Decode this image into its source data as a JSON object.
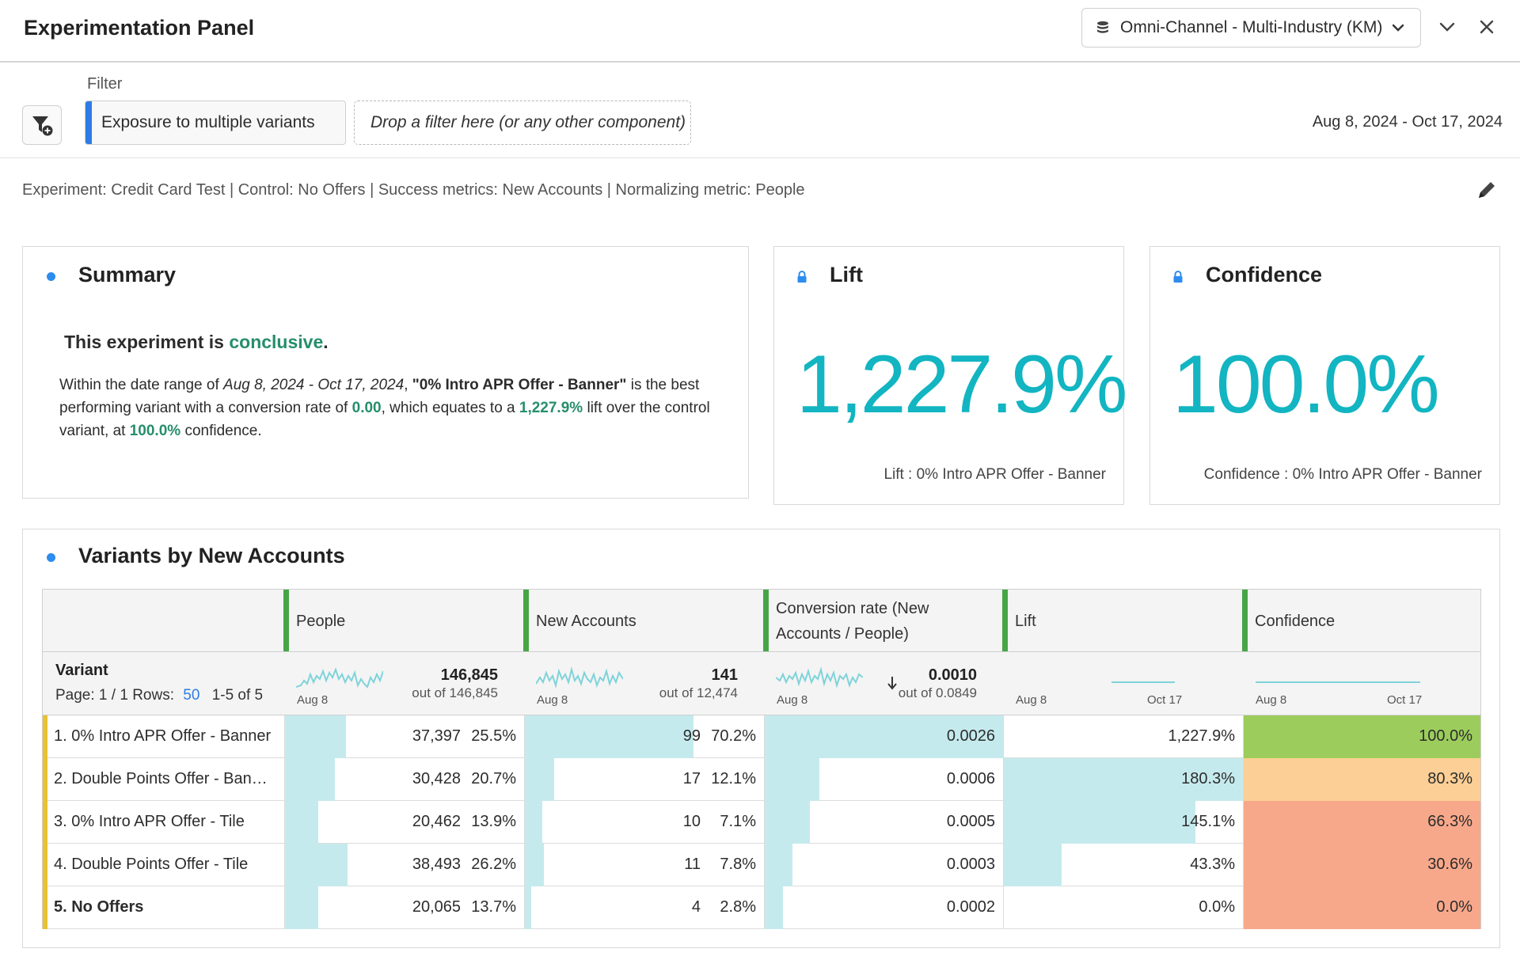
{
  "header": {
    "title": "Experimentation Panel",
    "datasource": "Omni-Channel - Multi-Industry (KM)"
  },
  "filter": {
    "label": "Filter",
    "chip": "Exposure to multiple variants",
    "drop_placeholder": "Drop a filter here (or any other component)",
    "date_range": "Aug 8, 2024 - Oct 17, 2024"
  },
  "experiment_description": "Experiment: Credit Card Test | Control: No Offers | Success metrics: New Accounts | Normalizing metric: People",
  "summary": {
    "title": "Summary",
    "headline_prefix": "This experiment is ",
    "headline_status": "conclusive",
    "headline_suffix": ".",
    "p1": "Within the date range of ",
    "date_range": "Aug 8, 2024 - Oct 17, 2024",
    "p2": ",  ",
    "variant": "\"0% Intro APR Offer - Banner\"",
    "p3": " is the best performing variant with a conversion rate of ",
    "rate": "0.00",
    "p4": ", which equates to a ",
    "lift": "1,227.9%",
    "p5": " lift over the control variant, at ",
    "confidence": "100.0%",
    "p6": " confidence."
  },
  "lift_card": {
    "title": "Lift",
    "value": "1,227.9%",
    "footer": "Lift : 0% Intro APR Offer - Banner"
  },
  "confidence_card": {
    "title": "Confidence",
    "value": "100.0%",
    "footer": "Confidence : 0% Intro APR Offer - Banner"
  },
  "table": {
    "title": "Variants by New Accounts",
    "columns": [
      "People",
      "New Accounts",
      "Conversion rate (New Accounts / People)",
      "Lift",
      "Confidence"
    ],
    "dimension_label": "Variant",
    "pagination": {
      "page": "Page: 1 / 1",
      "rows_label": "Rows:",
      "rows_value": "50",
      "range": "1-5 of 5"
    },
    "totals": {
      "people": {
        "value": "146,845",
        "out_of": "out of 146,845",
        "spark_start": "Aug 8"
      },
      "accounts": {
        "value": "141",
        "out_of": "out of 12,474",
        "spark_start": "Aug 8"
      },
      "rate": {
        "value": "0.0010",
        "out_of": "out of 0.0849",
        "spark_start": "Aug 8"
      },
      "lift": {
        "spark_start": "Aug 8",
        "spark_end": "Oct 17"
      },
      "confidence": {
        "spark_start": "Aug 8",
        "spark_end": "Oct 17"
      }
    },
    "rows": [
      {
        "label": "1.  0% Intro APR Offer - Banner",
        "people": "37,397",
        "people_pct": "25.5%",
        "people_frac": 0.255,
        "accounts": "99",
        "accounts_pct": "70.2%",
        "accounts_frac": 0.702,
        "rate": "0.0026",
        "rate_frac": 1.0,
        "lift": "1,227.9%",
        "lift_frac": 0.0,
        "confidence": "100.0%",
        "conf_color": "#9ccd5c"
      },
      {
        "label": "2.  Double Points Offer - Ban…",
        "people": "30,428",
        "people_pct": "20.7%",
        "people_frac": 0.207,
        "accounts": "17",
        "accounts_pct": "12.1%",
        "accounts_frac": 0.121,
        "rate": "0.0006",
        "rate_frac": 0.23,
        "lift": "180.3%",
        "lift_frac": 1.0,
        "confidence": "80.3%",
        "conf_color": "#fbcf95"
      },
      {
        "label": "3.  0% Intro APR Offer - Tile",
        "people": "20,462",
        "people_pct": "13.9%",
        "people_frac": 0.139,
        "accounts": "10",
        "accounts_pct": "7.1%",
        "accounts_frac": 0.071,
        "rate": "0.0005",
        "rate_frac": 0.19,
        "lift": "145.1%",
        "lift_frac": 0.8,
        "confidence": "66.3%",
        "conf_color": "#f8a88a"
      },
      {
        "label": "4.  Double Points Offer - Tile",
        "people": "38,493",
        "people_pct": "26.2%",
        "people_frac": 0.262,
        "accounts": "11",
        "accounts_pct": "7.8%",
        "accounts_frac": 0.078,
        "rate": "0.0003",
        "rate_frac": 0.115,
        "lift": "43.3%",
        "lift_frac": 0.24,
        "confidence": "30.6%",
        "conf_color": "#f8a88a"
      },
      {
        "label": "5.  No Offers",
        "people": "20,065",
        "people_pct": "13.7%",
        "people_frac": 0.137,
        "accounts": "4",
        "accounts_pct": "2.8%",
        "accounts_frac": 0.028,
        "rate": "0.0002",
        "rate_frac": 0.077,
        "lift": "0.0%",
        "lift_frac": 0.0,
        "confidence": "0.0%",
        "conf_color": "#f8a88a"
      }
    ]
  }
}
